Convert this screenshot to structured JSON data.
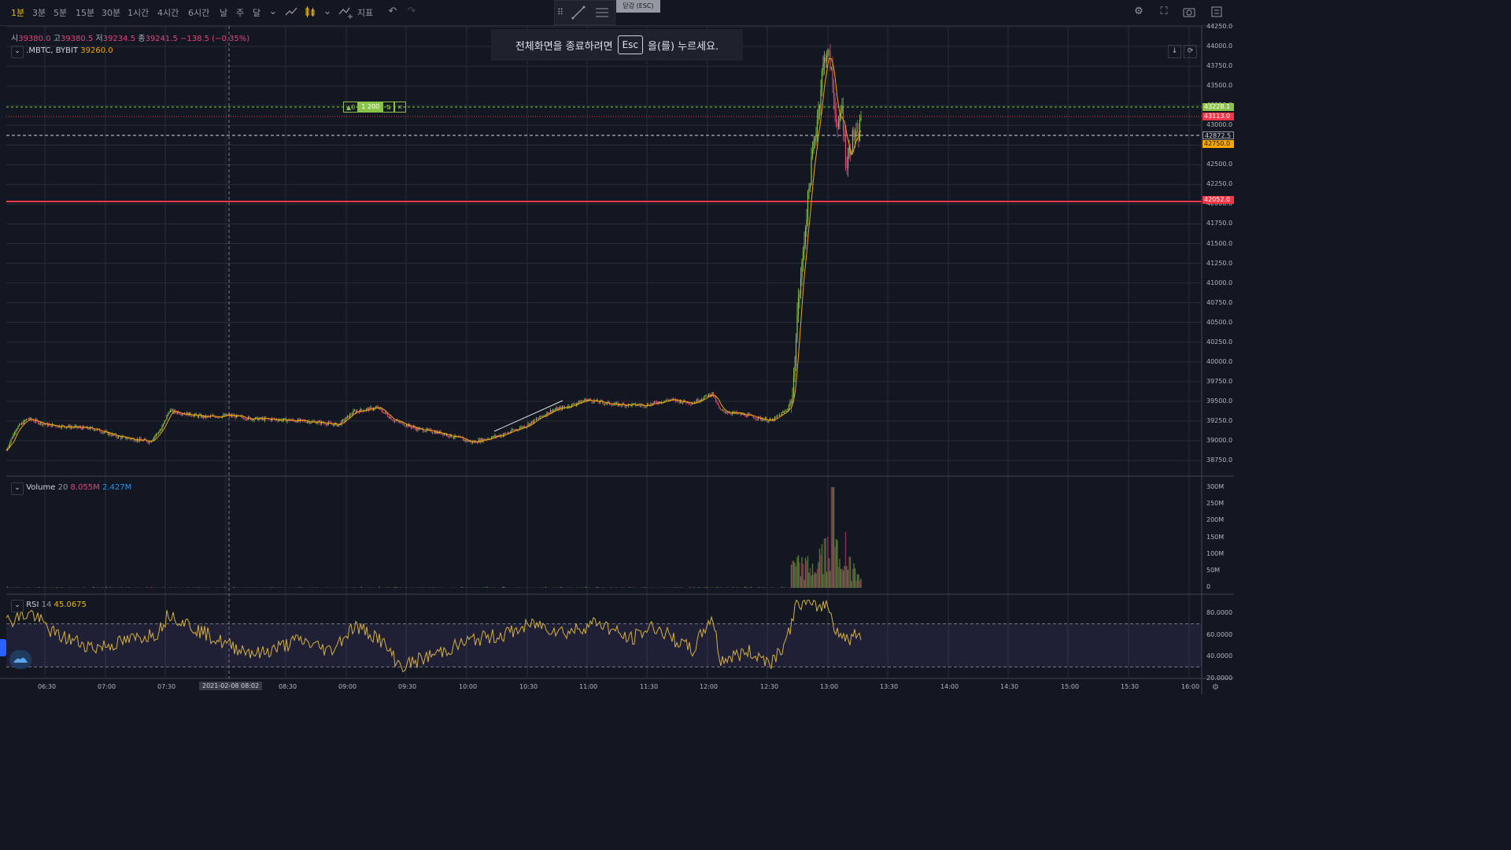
{
  "toolbar": {
    "timeframes": [
      "1분",
      "3분",
      "5분",
      "15분",
      "30분",
      "1시간",
      "4시간",
      "6시간",
      "날",
      "주",
      "달"
    ],
    "active_timeframe": "1분",
    "indicators_label": "지표",
    "fullscreen_hint_tab": "닫감 (ESC)"
  },
  "toast": {
    "text_before": "전체화면을 종료하려면",
    "key": "Esc",
    "text_after": "을(를) 누르세요."
  },
  "ohlc": {
    "o_label": "시",
    "o": "39380.0",
    "h_label": "고",
    "h": "39380.5",
    "l_label": "저",
    "l": "39234.5",
    "c_label": "종",
    "c": "39241.5",
    "change": "−138.5 (−0.35%)"
  },
  "symbol": {
    "name": ".MBTC, BYBIT",
    "last": "39260.0"
  },
  "order_widget": {
    "qty_small": "▲0",
    "qty": "1 200"
  },
  "volume": {
    "name": "Volume",
    "param": "20",
    "value1": "8.055M",
    "value2": "2.427M"
  },
  "rsi": {
    "name": "RSI",
    "param": "14",
    "value": "45.0675"
  },
  "price_axis": [
    "44250.0",
    "44000.0",
    "43750.0",
    "43500.0",
    "43250.0",
    "43000.0",
    "42750.0",
    "42500.0",
    "42250.0",
    "42000.0",
    "41750.0",
    "41500.0",
    "41250.0",
    "41000.0",
    "40750.0",
    "40500.0",
    "40250.0",
    "40000.0",
    "39750.0",
    "39500.0",
    "39250.0",
    "39000.0",
    "38750.0"
  ],
  "price_tags": {
    "green_line": "43228.1",
    "red_dotted": "43113.0",
    "white_dashed": "42872.5",
    "orange_last": "42750.0",
    "red_solid": "42052.0"
  },
  "volume_axis": [
    "300M",
    "250M",
    "200M",
    "150M",
    "100M",
    "50M",
    "0"
  ],
  "rsi_axis": [
    "80.0000",
    "60.0000",
    "40.0000",
    "20.0000"
  ],
  "time_axis": [
    "06:30",
    "07:00",
    "07:30",
    "2021-02-08",
    "08:02",
    "08:30",
    "09:00",
    "09:30",
    "10:00",
    "10:30",
    "11:00",
    "11:30",
    "12:00",
    "12:30",
    "13:00",
    "13:30",
    "14:00",
    "14:30",
    "15:00",
    "15:30",
    "16:00"
  ],
  "colors": {
    "up": "#8bc34a",
    "down": "#e0457b",
    "ma": "#f7a600",
    "red_line": "#f23645",
    "rsi_line": "#d6b03a"
  }
}
